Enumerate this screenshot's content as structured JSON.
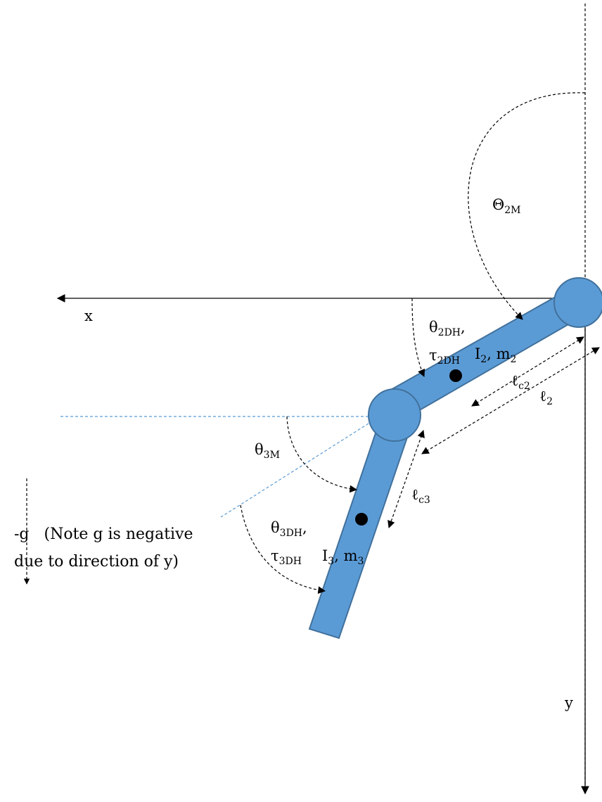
{
  "colors": {
    "link_fill": "#5b9bd5",
    "link_stroke": "#41719c",
    "dashed_blue": "#5b9bd5",
    "ink": "#000000"
  },
  "labels": {
    "x_axis": "x",
    "y_axis": "y",
    "theta_2m": {
      "main": "Θ",
      "sub": "2M"
    },
    "theta_2dh": {
      "main": "θ",
      "sub": "2DH",
      "tail": ","
    },
    "tau_2dh": {
      "main": "τ",
      "sub": "2DH"
    },
    "link2_props": {
      "i": "I",
      "i_sub": "2",
      "mid": ", m",
      "m_sub": "2"
    },
    "lc2": {
      "main": "ℓ",
      "sub": "c2"
    },
    "l2": {
      "main": "ℓ",
      "sub": "2"
    },
    "theta_3m": {
      "main": "θ",
      "sub": "3M"
    },
    "lc3": {
      "main": "ℓ",
      "sub": "c3"
    },
    "theta_3dh": {
      "main": "θ",
      "sub": "3DH",
      "tail": ","
    },
    "tau_3dh": {
      "main": "τ",
      "sub": "3DH"
    },
    "link3_props": {
      "i": "I",
      "i_sub": "3",
      "mid": ", m",
      "m_sub": "3"
    },
    "gravity_line1": "-g   (Note g is negative",
    "gravity_line2": "due to direction of y)"
  }
}
